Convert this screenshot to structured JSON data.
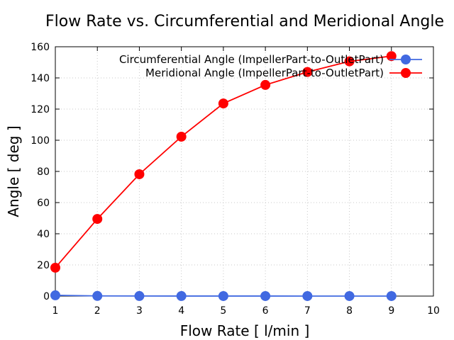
{
  "chart_data": {
    "type": "line",
    "title": "Flow Rate vs. Circumferential and Meridional Angle",
    "xlabel": "Flow Rate [ l/min ]",
    "ylabel": "Angle [ deg ]",
    "xlim": [
      1,
      10
    ],
    "ylim": [
      0,
      160
    ],
    "xticks": [
      "1",
      "2",
      "3",
      "4",
      "5",
      "6",
      "7",
      "8",
      "9",
      "10"
    ],
    "yticks": [
      "0",
      "20",
      "40",
      "60",
      "80",
      "100",
      "120",
      "140",
      "160"
    ],
    "grid": true,
    "legend_position": "top-right",
    "x": [
      1,
      2,
      3,
      4,
      5,
      6,
      7,
      8,
      9
    ],
    "series": [
      {
        "name": "Circumferential Angle (ImpellerPart-to-OutletPart)",
        "color": "#4169e1",
        "values": [
          0.5,
          0.1,
          0.05,
          0.03,
          0.02,
          0.02,
          0.01,
          0.01,
          0.01
        ]
      },
      {
        "name": "Meridional Angle (ImpellerPart-to-OutletPart)",
        "color": "#ff0000",
        "values": [
          18.2,
          49.5,
          78.2,
          102.3,
          123.6,
          135.5,
          143.8,
          150.6,
          154.0
        ]
      }
    ]
  }
}
